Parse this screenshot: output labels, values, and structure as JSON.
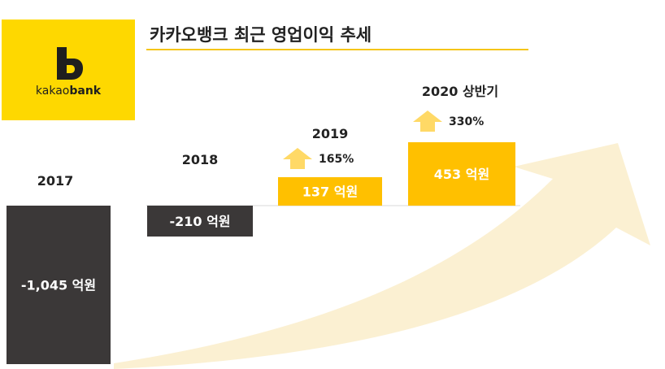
{
  "title": "카카오뱅크 최근 영업이익 추세",
  "logo": {
    "prefix": "kakao",
    "suffix": "bank",
    "mark": "B"
  },
  "colors": {
    "negative_bar": "#3b3838",
    "positive_bar": "#ffc000",
    "arrow_up": "#ffd966",
    "trend_arrow": "#fbeecd",
    "brand": "#fed800",
    "title_rule": "#f5c518"
  },
  "chart_data": {
    "type": "bar",
    "title": "카카오뱅크 최근 영업이익 추세",
    "categories": [
      "2017",
      "2018",
      "2019",
      "2020 상반기"
    ],
    "values": [
      -1045,
      -210,
      137,
      453
    ],
    "value_labels": [
      "-1,045 억원",
      "-210 억원",
      "137 억원",
      "453 억원"
    ],
    "growth": [
      null,
      null,
      "165%",
      "330%"
    ],
    "unit": "억원",
    "xlabel": "",
    "ylabel": ""
  }
}
